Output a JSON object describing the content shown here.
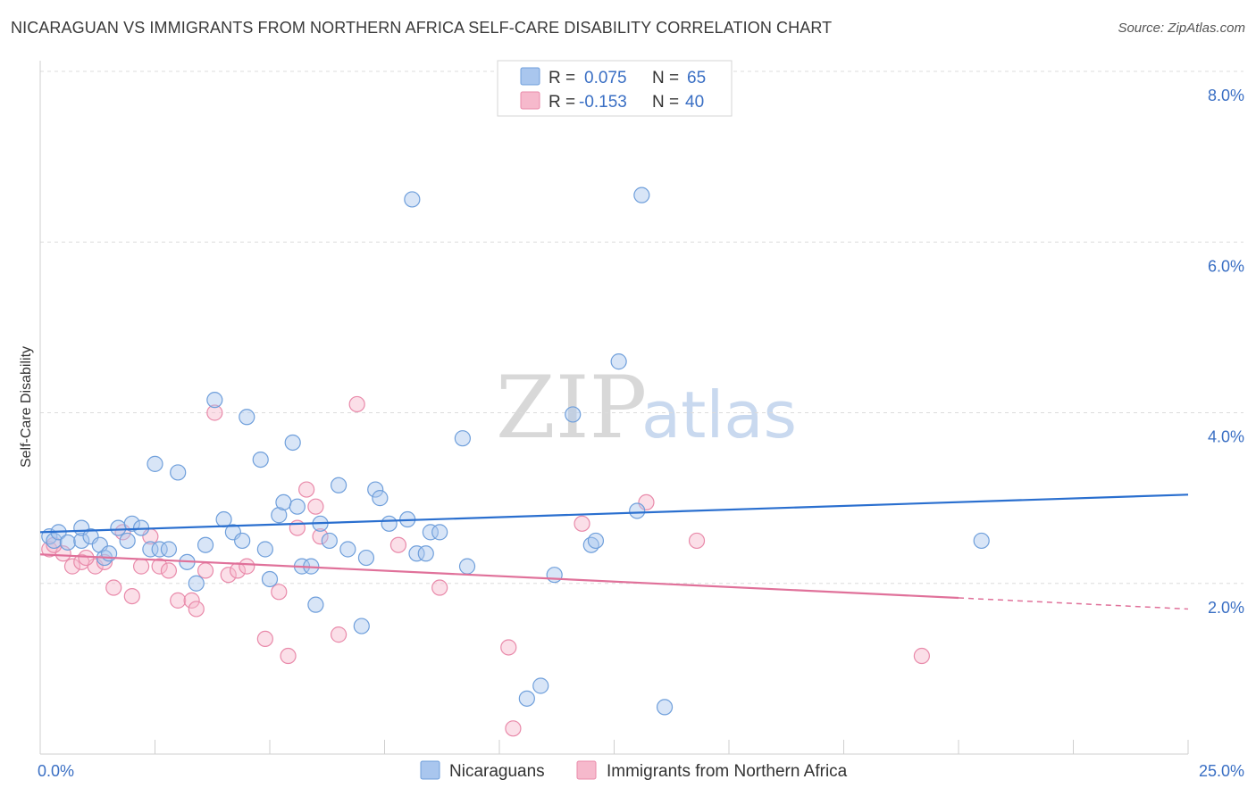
{
  "title": "NICARAGUAN VS IMMIGRANTS FROM NORTHERN AFRICA SELF-CARE DISABILITY CORRELATION CHART",
  "source": "Source: ZipAtlas.com",
  "watermark": {
    "zip": "ZIP",
    "atlas": "atlas"
  },
  "colors": {
    "blue_fill": "#a9c6ee",
    "blue_stroke": "#6f9fdb",
    "blue_line": "#2a6fcf",
    "pink_fill": "#f6b9cc",
    "pink_stroke": "#e98aaa",
    "pink_line": "#e0719a",
    "axis_text": "#3a6fc4"
  },
  "legend": {
    "rows": [
      {
        "r_label": "R =",
        "r_value": "0.075",
        "n_label": "N =",
        "n_value": "65"
      },
      {
        "r_label": "R =",
        "r_value": "-0.153",
        "n_label": "N =",
        "n_value": "40"
      }
    ]
  },
  "chart_data": {
    "type": "scatter",
    "title": "NICARAGUAN VS IMMIGRANTS FROM NORTHERN AFRICA SELF-CARE DISABILITY CORRELATION CHART",
    "xlabel": "",
    "ylabel": "Self-Care Disability",
    "xlim": [
      0,
      25
    ],
    "ylim": [
      0,
      8.0
    ],
    "x_tick_labels": [
      "0.0%",
      "25.0%"
    ],
    "y_ticks": [
      2.0,
      4.0,
      6.0,
      8.0
    ],
    "y_tick_labels": [
      "2.0%",
      "4.0%",
      "6.0%",
      "8.0%"
    ],
    "grid": "horizontal-dashed",
    "legend_position": "top-center",
    "series": [
      {
        "name": "Nicaraguans",
        "r": 0.075,
        "n": 65,
        "trend": {
          "x": [
            0,
            25
          ],
          "y": [
            2.6,
            3.04
          ]
        },
        "points": [
          [
            0.2,
            2.55
          ],
          [
            0.3,
            2.5
          ],
          [
            0.4,
            2.6
          ],
          [
            0.6,
            2.48
          ],
          [
            0.9,
            2.5
          ],
          [
            0.9,
            2.65
          ],
          [
            1.1,
            2.55
          ],
          [
            1.3,
            2.45
          ],
          [
            1.4,
            2.3
          ],
          [
            1.5,
            2.35
          ],
          [
            1.7,
            2.65
          ],
          [
            1.9,
            2.5
          ],
          [
            2.0,
            2.7
          ],
          [
            2.2,
            2.65
          ],
          [
            2.4,
            2.4
          ],
          [
            2.5,
            3.4
          ],
          [
            2.6,
            2.4
          ],
          [
            2.8,
            2.4
          ],
          [
            3.0,
            3.3
          ],
          [
            3.2,
            2.25
          ],
          [
            3.4,
            2.0
          ],
          [
            3.6,
            2.45
          ],
          [
            3.8,
            4.15
          ],
          [
            4.0,
            2.75
          ],
          [
            4.2,
            2.6
          ],
          [
            4.4,
            2.5
          ],
          [
            4.5,
            3.95
          ],
          [
            4.8,
            3.45
          ],
          [
            4.9,
            2.4
          ],
          [
            5.0,
            2.05
          ],
          [
            5.2,
            2.8
          ],
          [
            5.3,
            2.95
          ],
          [
            5.5,
            3.65
          ],
          [
            5.6,
            2.9
          ],
          [
            5.7,
            2.2
          ],
          [
            5.9,
            2.2
          ],
          [
            6.0,
            1.75
          ],
          [
            6.1,
            2.7
          ],
          [
            6.3,
            2.5
          ],
          [
            6.5,
            3.15
          ],
          [
            6.7,
            2.4
          ],
          [
            7.0,
            1.5
          ],
          [
            7.1,
            2.3
          ],
          [
            7.3,
            3.1
          ],
          [
            7.4,
            3.0
          ],
          [
            7.6,
            2.7
          ],
          [
            8.0,
            2.75
          ],
          [
            8.1,
            6.5
          ],
          [
            8.2,
            2.35
          ],
          [
            8.4,
            2.35
          ],
          [
            8.5,
            2.6
          ],
          [
            8.7,
            2.6
          ],
          [
            9.2,
            3.7
          ],
          [
            9.3,
            2.2
          ],
          [
            10.6,
            0.65
          ],
          [
            10.9,
            0.8
          ],
          [
            11.2,
            2.1
          ],
          [
            11.6,
            3.98
          ],
          [
            12.0,
            2.45
          ],
          [
            12.1,
            2.5
          ],
          [
            12.6,
            4.6
          ],
          [
            13.0,
            2.85
          ],
          [
            13.1,
            6.55
          ],
          [
            13.6,
            0.55
          ],
          [
            20.5,
            2.5
          ]
        ]
      },
      {
        "name": "Immigrants from Northern Africa",
        "r": -0.153,
        "n": 40,
        "trend": {
          "x": [
            0,
            20
          ],
          "y": [
            2.34,
            1.83
          ]
        },
        "trend_dashed": {
          "x": [
            20,
            25
          ],
          "y": [
            1.83,
            1.7
          ]
        },
        "points": [
          [
            0.2,
            2.4
          ],
          [
            0.5,
            2.35
          ],
          [
            0.7,
            2.2
          ],
          [
            0.9,
            2.25
          ],
          [
            1.2,
            2.2
          ],
          [
            1.4,
            2.25
          ],
          [
            1.6,
            1.95
          ],
          [
            1.8,
            2.6
          ],
          [
            2.0,
            1.85
          ],
          [
            2.2,
            2.2
          ],
          [
            2.4,
            2.55
          ],
          [
            2.6,
            2.2
          ],
          [
            2.8,
            2.15
          ],
          [
            3.0,
            1.8
          ],
          [
            3.3,
            1.8
          ],
          [
            3.4,
            1.7
          ],
          [
            3.6,
            2.15
          ],
          [
            3.8,
            4.0
          ],
          [
            4.1,
            2.1
          ],
          [
            4.3,
            2.15
          ],
          [
            4.5,
            2.2
          ],
          [
            4.9,
            1.35
          ],
          [
            5.2,
            1.9
          ],
          [
            5.4,
            1.15
          ],
          [
            5.6,
            2.65
          ],
          [
            5.8,
            3.1
          ],
          [
            6.0,
            2.9
          ],
          [
            6.1,
            2.55
          ],
          [
            6.5,
            1.4
          ],
          [
            6.9,
            4.1
          ],
          [
            7.8,
            2.45
          ],
          [
            8.7,
            1.95
          ],
          [
            10.2,
            1.25
          ],
          [
            10.3,
            0.3
          ],
          [
            11.8,
            2.7
          ],
          [
            13.2,
            2.95
          ],
          [
            14.3,
            2.5
          ],
          [
            19.2,
            1.15
          ],
          [
            0.3,
            2.45
          ],
          [
            1.0,
            2.3
          ]
        ]
      }
    ]
  },
  "bottom_legend": [
    "Nicaraguans",
    "Immigrants from Northern Africa"
  ]
}
